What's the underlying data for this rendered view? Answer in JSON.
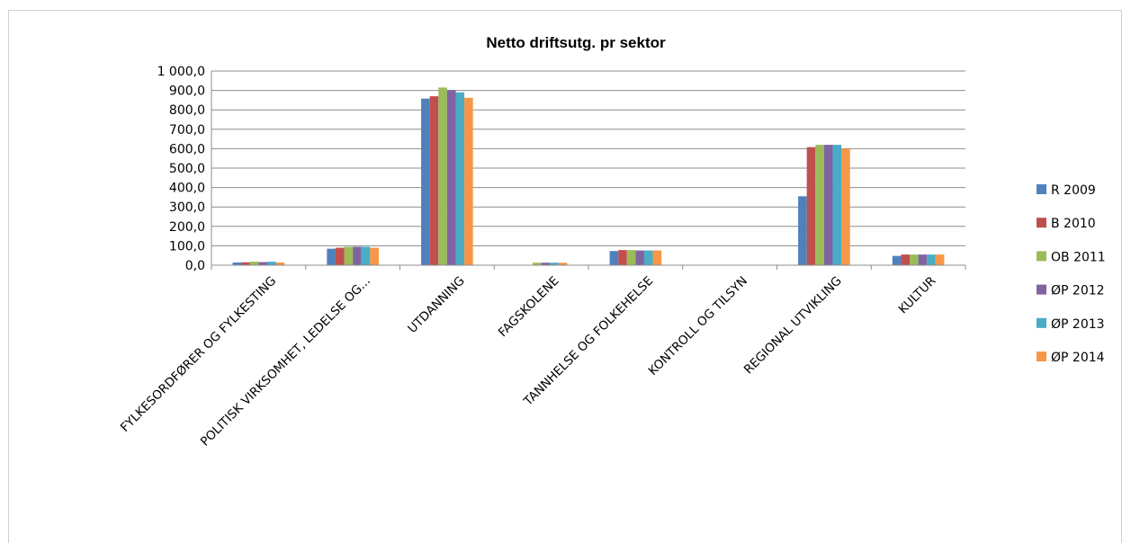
{
  "chart_data": {
    "type": "bar",
    "title": "Netto driftsutg. pr sektor",
    "xlabel": "",
    "ylabel": "",
    "ylim": [
      0,
      1000
    ],
    "yticks": [
      "0,0",
      "100,0",
      "200,0",
      "300,0",
      "400,0",
      "500,0",
      "600,0",
      "700,0",
      "800,0",
      "900,0",
      "1 000,0"
    ],
    "grid": true,
    "legend_position": "right",
    "categories": [
      "FYLKESORDFØRER OG FYLKESTING",
      "POLITISK VIRKSOMHET, LEDELSE OG...",
      "UTDANNING",
      "FAGSKOLENE",
      "TANNHELSE OG FOLKEHELSE",
      "KONTROLL OG TILSYN",
      "REGIONAL UTVIKLING",
      "KULTUR"
    ],
    "series": [
      {
        "name": "R 2009",
        "color": "#4f81bd",
        "values": [
          14,
          85,
          858,
          0,
          73,
          0,
          355,
          48
        ]
      },
      {
        "name": "B 2010",
        "color": "#c0504d",
        "values": [
          15,
          90,
          870,
          0,
          78,
          0,
          608,
          55
        ]
      },
      {
        "name": "OB 2011",
        "color": "#9bbb59",
        "values": [
          18,
          95,
          915,
          13,
          78,
          0,
          620,
          55
        ]
      },
      {
        "name": "ØP 2012",
        "color": "#8064a2",
        "values": [
          16,
          95,
          902,
          13,
          76,
          0,
          620,
          55
        ]
      },
      {
        "name": "ØP 2013",
        "color": "#4bacc6",
        "values": [
          18,
          95,
          890,
          13,
          76,
          0,
          620,
          55
        ]
      },
      {
        "name": "ØP 2014",
        "color": "#f79646",
        "values": [
          14,
          90,
          862,
          13,
          76,
          0,
          600,
          55
        ]
      }
    ]
  }
}
